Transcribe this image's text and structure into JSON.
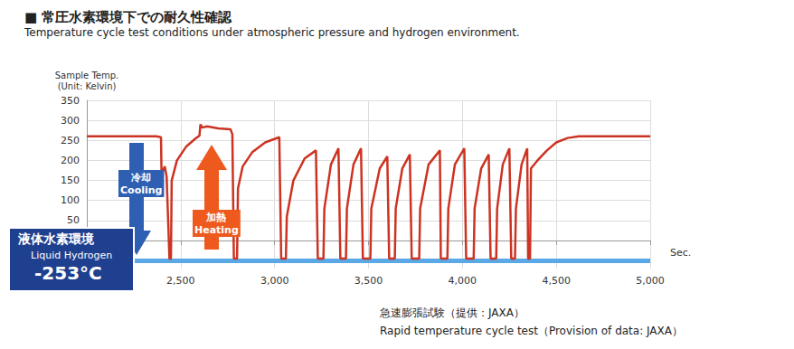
{
  "chart_data": {
    "type": "line",
    "title": "■ 常圧水素環境下での耐久性確認",
    "subtitle": "Temperature cycle test conditions under atmospheric pressure and hydrogen environment.",
    "y_label": "Sample Temp.\n(Unit: Kelvin)",
    "x_label": "Sec.",
    "caption": [
      "急速膨張試験（提供：JAXA）",
      "Rapid temperature cycle test（Provision of data: JAXA）"
    ],
    "annotations": {
      "cooling": [
        "冷却",
        "Cooling"
      ],
      "heating": [
        "加熱",
        "Heating"
      ],
      "liquid_hydrogen": {
        "lines": [
          "液体水素環境",
          "Liquid Hydrogen",
          "-253°C"
        ],
        "level": -50,
        "color": "#5aa9e6"
      }
    },
    "color": "#cc3322",
    "grid": true,
    "xlim": [
      2000,
      5000
    ],
    "xticks": [
      {
        "value": 2500,
        "label": "2,500"
      },
      {
        "value": 3000,
        "label": "3,000"
      },
      {
        "value": 3500,
        "label": "3,500"
      },
      {
        "value": 4000,
        "label": "4,000"
      },
      {
        "value": 4500,
        "label": "4,500"
      },
      {
        "value": 5000,
        "label": "5,000"
      }
    ],
    "ylim": [
      -70,
      350
    ],
    "yticks": [
      50,
      100,
      150,
      200,
      250,
      300,
      350
    ],
    "x": [
      2000,
      2370,
      2395,
      2398,
      2415,
      2425,
      2440,
      2448,
      2452,
      2480,
      2530,
      2580,
      2600,
      2605,
      2615,
      2640,
      2700,
      2765,
      2775,
      2783,
      2800,
      2805,
      2830,
      2880,
      2950,
      3025,
      3035,
      3060,
      3065,
      3100,
      3160,
      3220,
      3230,
      3260,
      3265,
      3300,
      3340,
      3350,
      3380,
      3385,
      3420,
      3460,
      3470,
      3510,
      3515,
      3560,
      3600,
      3610,
      3640,
      3645,
      3680,
      3720,
      3730,
      3770,
      3775,
      3820,
      3880,
      3885,
      3920,
      3925,
      3960,
      4010,
      4020,
      4060,
      4065,
      4100,
      4140,
      4150,
      4180,
      4185,
      4215,
      4250,
      4260,
      4280,
      4285,
      4315,
      4345,
      4350,
      4360,
      4365,
      4400,
      4450,
      4500,
      4560,
      4620,
      5000
    ],
    "values": [
      260,
      260,
      258,
      165,
      185,
      160,
      -45,
      -45,
      150,
      200,
      235,
      255,
      262,
      290,
      282,
      285,
      280,
      278,
      265,
      -45,
      -45,
      130,
      185,
      220,
      245,
      258,
      -45,
      -45,
      60,
      150,
      205,
      225,
      -45,
      -45,
      80,
      190,
      230,
      -45,
      -45,
      80,
      190,
      230,
      -45,
      -45,
      80,
      180,
      210,
      -45,
      -45,
      80,
      180,
      215,
      -45,
      -45,
      80,
      190,
      225,
      -45,
      -45,
      80,
      190,
      230,
      -45,
      -45,
      80,
      180,
      215,
      -45,
      -45,
      80,
      190,
      230,
      -45,
      -45,
      80,
      190,
      230,
      -45,
      -45,
      180,
      200,
      225,
      245,
      256,
      260,
      260
    ]
  }
}
